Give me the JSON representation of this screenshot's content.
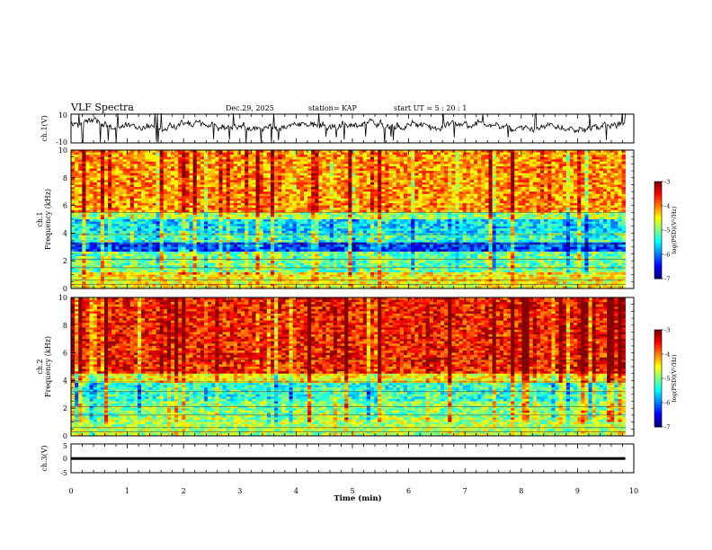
{
  "header": {
    "title": "VLF Spectra",
    "date": "Dec.29, 2025",
    "station": "station= KAP",
    "start_ut": "start  UT =   5  : 20 : 1"
  },
  "chart_data": [
    {
      "id": "ch1-waveform",
      "type": "line",
      "ylabel": "ch.1(V)",
      "ylim": [
        -10,
        10
      ],
      "yticks": [
        "10",
        "-10"
      ],
      "xlim": [
        0,
        9.85
      ],
      "baseline": 2,
      "noise_amplitude": 5
    },
    {
      "id": "ch1-spectrogram",
      "type": "heatmap",
      "ylabel": "ch.1\nFrequency (kHz)",
      "ylim": [
        0,
        10
      ],
      "yticks": [
        "0",
        "2",
        "4",
        "6",
        "8",
        "10"
      ],
      "xlim": [
        0,
        9.85
      ],
      "colorbar": {
        "label": "log(PSD)(V²/Hz)",
        "range": [
          -7,
          -3
        ],
        "ticks": [
          "-3",
          "-4",
          "-5",
          "-6",
          "-7"
        ]
      },
      "bands": [
        {
          "from": 0,
          "to": 1.2,
          "level": -4.5
        },
        {
          "from": 1.2,
          "to": 2.6,
          "level": -5.1
        },
        {
          "from": 2.6,
          "to": 3.4,
          "level": -6.3
        },
        {
          "from": 3.4,
          "to": 4.0,
          "level": -5.3
        },
        {
          "from": 4.0,
          "to": 5.0,
          "level": -5.6
        },
        {
          "from": 5.0,
          "to": 5.5,
          "level": -4.9
        },
        {
          "from": 5.5,
          "to": 10,
          "level": -4.1
        }
      ]
    },
    {
      "id": "ch2-spectrogram",
      "type": "heatmap",
      "ylabel": "ch.2\nFrequency (kHz)",
      "ylim": [
        0,
        10
      ],
      "yticks": [
        "0",
        "2",
        "4",
        "6",
        "8",
        "10"
      ],
      "xlim": [
        0,
        9.85
      ],
      "colorbar": {
        "label": "log(PSD)(V²/Hz)",
        "range": [
          -7,
          -3
        ],
        "ticks": [
          "-3",
          "-4",
          "-5",
          "-6",
          "-7"
        ]
      },
      "bands": [
        {
          "from": 0,
          "to": 1.3,
          "level": -4.8
        },
        {
          "from": 1.3,
          "to": 2.5,
          "level": -5.0
        },
        {
          "from": 2.5,
          "to": 3.8,
          "level": -5.3
        },
        {
          "from": 3.8,
          "to": 4.5,
          "level": -4.5
        },
        {
          "from": 4.5,
          "to": 10,
          "level": -3.6
        }
      ]
    },
    {
      "id": "ch3-waveform",
      "type": "line",
      "ylabel": "ch.3(V)",
      "ylim": [
        -5,
        5
      ],
      "yticks": [
        "5",
        "0",
        "-5"
      ],
      "xlim": [
        0,
        9.85
      ],
      "baseline": 0,
      "noise_amplitude": 0.4
    }
  ],
  "xaxis": {
    "label": "Time (min)",
    "ticks": [
      "0",
      "1",
      "2",
      "3",
      "4",
      "5",
      "6",
      "7",
      "8",
      "9",
      "10"
    ],
    "range": [
      0,
      10
    ]
  }
}
